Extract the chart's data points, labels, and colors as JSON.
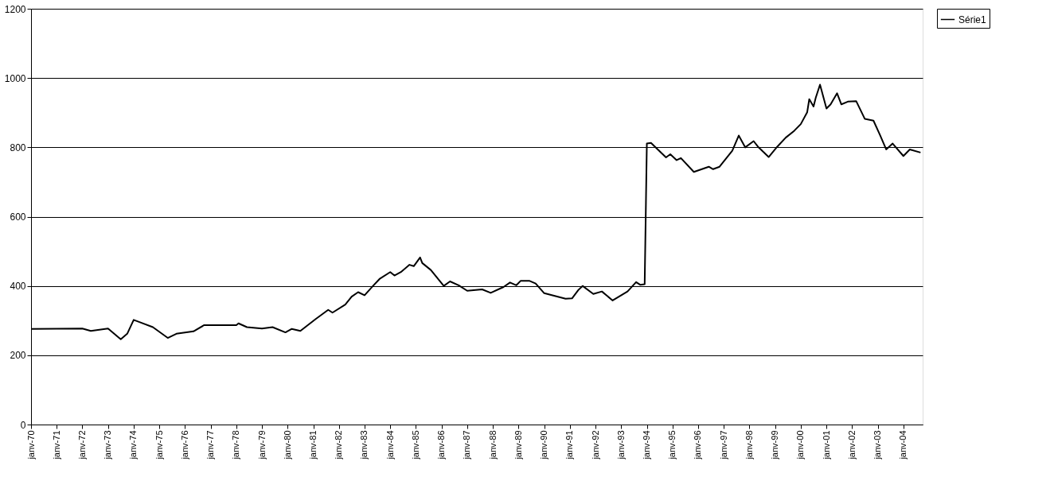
{
  "chart_data": {
    "type": "line",
    "x": [
      "1970-01",
      "1972-01",
      "1972-05",
      "1973-01",
      "1973-07",
      "1973-10",
      "1974-01",
      "1974-04",
      "1974-10",
      "1975-05",
      "1975-09",
      "1976-05",
      "1976-10",
      "1978-01",
      "1978-02",
      "1978-06",
      "1979-01",
      "1979-06",
      "1979-12",
      "1980-03",
      "1980-07",
      "1981-02",
      "1981-08",
      "1981-10",
      "1982-04",
      "1982-07",
      "1982-10",
      "1983-01",
      "1983-05",
      "1983-08",
      "1984-01",
      "1984-03",
      "1984-06",
      "1984-10",
      "1984-12",
      "1985-03",
      "1985-04",
      "1985-08",
      "1986-02",
      "1986-05",
      "1986-09",
      "1987-01",
      "1987-08",
      "1987-12",
      "1988-06",
      "1988-09",
      "1988-12",
      "1989-02",
      "1989-06",
      "1989-09",
      "1990-01",
      "1990-06",
      "1990-11",
      "1991-02",
      "1991-05",
      "1991-07",
      "1991-12",
      "1992-04",
      "1992-09",
      "1993-04",
      "1993-08",
      "1993-10",
      "1993-12",
      "1994-01",
      "1994-03",
      "1994-10",
      "1994-12",
      "1995-03",
      "1995-05",
      "1995-11",
      "1996-06",
      "1996-08",
      "1996-11",
      "1997-05",
      "1997-08",
      "1997-11",
      "1998-03",
      "1998-05",
      "1998-10",
      "1999-02",
      "1999-06",
      "1999-10",
      "2000-01",
      "2000-04",
      "2000-05",
      "2000-07",
      "2000-08",
      "2000-10",
      "2001-01",
      "2001-03",
      "2001-06",
      "2001-08",
      "2001-11",
      "2002-03",
      "2002-07",
      "2002-11",
      "2003-02",
      "2003-05",
      "2003-08",
      "2004-01",
      "2004-04",
      "2004-09"
    ],
    "series": [
      {
        "name": "Série1",
        "color": "#000000",
        "values": [
          276,
          277,
          270,
          277,
          246,
          262,
          302,
          295,
          281,
          250,
          262,
          269,
          287,
          287,
          292,
          281,
          277,
          281,
          266,
          276,
          270,
          304,
          331,
          323,
          346,
          369,
          382,
          373,
          400,
          420,
          440,
          430,
          440,
          461,
          457,
          482,
          466,
          446,
          400,
          413,
          402,
          386,
          390,
          380,
          397,
          410,
          402,
          415,
          415,
          407,
          379,
          371,
          363,
          364,
          388,
          400,
          377,
          384,
          358,
          384,
          411,
          403,
          405,
          811,
          813,
          771,
          780,
          763,
          769,
          729,
          744,
          737,
          744,
          790,
          834,
          800,
          818,
          802,
          772,
          802,
          828,
          848,
          867,
          901,
          939,
          918,
          943,
          981,
          912,
          924,
          956,
          924,
          932,
          933,
          882,
          877,
          836,
          794,
          811,
          775,
          794,
          785
        ]
      }
    ],
    "xlim": [
      "1970-01",
      "2004-10"
    ],
    "xticks": [
      {
        "value": "1970-01",
        "label": "janv-70"
      },
      {
        "value": "1971-01",
        "label": "janv-71"
      },
      {
        "value": "1972-01",
        "label": "janv-72"
      },
      {
        "value": "1973-01",
        "label": "janv-73"
      },
      {
        "value": "1974-01",
        "label": "janv-74"
      },
      {
        "value": "1975-01",
        "label": "janv-75"
      },
      {
        "value": "1976-01",
        "label": "janv-76"
      },
      {
        "value": "1977-01",
        "label": "janv-77"
      },
      {
        "value": "1978-01",
        "label": "janv-78"
      },
      {
        "value": "1979-01",
        "label": "janv-79"
      },
      {
        "value": "1980-01",
        "label": "janv-80"
      },
      {
        "value": "1981-01",
        "label": "janv-81"
      },
      {
        "value": "1982-01",
        "label": "janv-82"
      },
      {
        "value": "1983-01",
        "label": "janv-83"
      },
      {
        "value": "1984-01",
        "label": "janv-84"
      },
      {
        "value": "1985-01",
        "label": "janv-85"
      },
      {
        "value": "1986-01",
        "label": "janv-86"
      },
      {
        "value": "1987-01",
        "label": "janv-87"
      },
      {
        "value": "1988-01",
        "label": "janv-88"
      },
      {
        "value": "1989-01",
        "label": "janv-89"
      },
      {
        "value": "1990-01",
        "label": "janv-90"
      },
      {
        "value": "1991-01",
        "label": "janv-91"
      },
      {
        "value": "1992-01",
        "label": "janv-92"
      },
      {
        "value": "1993-01",
        "label": "janv-93"
      },
      {
        "value": "1994-01",
        "label": "janv-94"
      },
      {
        "value": "1995-01",
        "label": "janv-95"
      },
      {
        "value": "1996-01",
        "label": "janv-96"
      },
      {
        "value": "1997-01",
        "label": "janv-97"
      },
      {
        "value": "1998-01",
        "label": "janv-98"
      },
      {
        "value": "1999-01",
        "label": "janv-99"
      },
      {
        "value": "2000-01",
        "label": "janv-00"
      },
      {
        "value": "2001-01",
        "label": "janv-01"
      },
      {
        "value": "2002-01",
        "label": "janv-02"
      },
      {
        "value": "2003-01",
        "label": "janv-03"
      },
      {
        "value": "2004-01",
        "label": "janv-04"
      }
    ],
    "ylim": [
      0,
      1200
    ],
    "yticks": [
      0,
      200,
      400,
      600,
      800,
      1000,
      1200
    ],
    "grid": "y",
    "legend": "right",
    "marker": "none",
    "line_style": "solid"
  }
}
